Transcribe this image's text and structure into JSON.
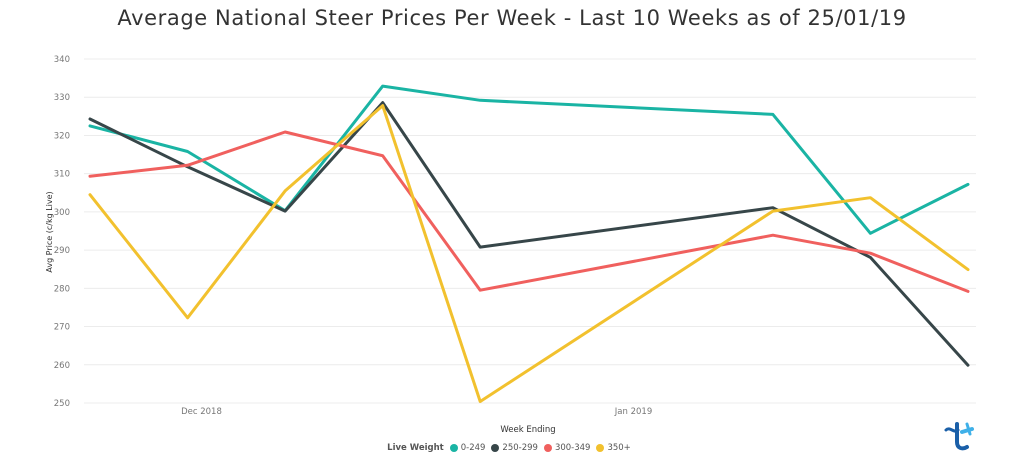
{
  "chart_data": {
    "type": "line",
    "title": "Average National Steer Prices Per Week - Last 10 Weeks as of 25/01/19",
    "xlabel": "Week Ending",
    "ylabel": "Avg Price (c/kg Live)",
    "ylim": [
      250,
      340
    ],
    "yticks": [
      250,
      260,
      270,
      280,
      290,
      300,
      310,
      320,
      330,
      340
    ],
    "x": [
      "2018-11-23",
      "2018-11-30",
      "2018-12-07",
      "2018-12-14",
      "2018-12-21",
      "2018-12-28",
      "2019-01-04",
      "2019-01-11",
      "2019-01-18",
      "2019-01-25"
    ],
    "x_visible_points": [
      0,
      1,
      2,
      3,
      4,
      7,
      8,
      9
    ],
    "x_tick_labels": [
      {
        "label": "Dec 2018",
        "at": "2018-12-01"
      },
      {
        "label": "Jan 2019",
        "at": "2019-01-01"
      }
    ],
    "grid": "horizontal",
    "legend": {
      "title": "Live Weight",
      "position": "bottom-center"
    },
    "series": [
      {
        "name": "0-249",
        "color": "#1ab4a4",
        "values": [
          322.5,
          315.8,
          300.3,
          332.9,
          329.2,
          null,
          null,
          325.5,
          294.4,
          307.2
        ]
      },
      {
        "name": "250-299",
        "color": "#374649",
        "values": [
          324.3,
          311.8,
          300.2,
          328.6,
          290.8,
          null,
          null,
          301.1,
          288.1,
          259.9
        ]
      },
      {
        "name": "300-349",
        "color": "#f0605e",
        "values": [
          309.3,
          312.2,
          320.9,
          314.7,
          279.5,
          null,
          null,
          293.9,
          289.2,
          279.2
        ]
      },
      {
        "name": "350+",
        "color": "#f2c12e",
        "values": [
          304.5,
          272.3,
          305.5,
          327.8,
          250.4,
          null,
          null,
          300.2,
          303.7,
          284.9
        ]
      }
    ]
  }
}
